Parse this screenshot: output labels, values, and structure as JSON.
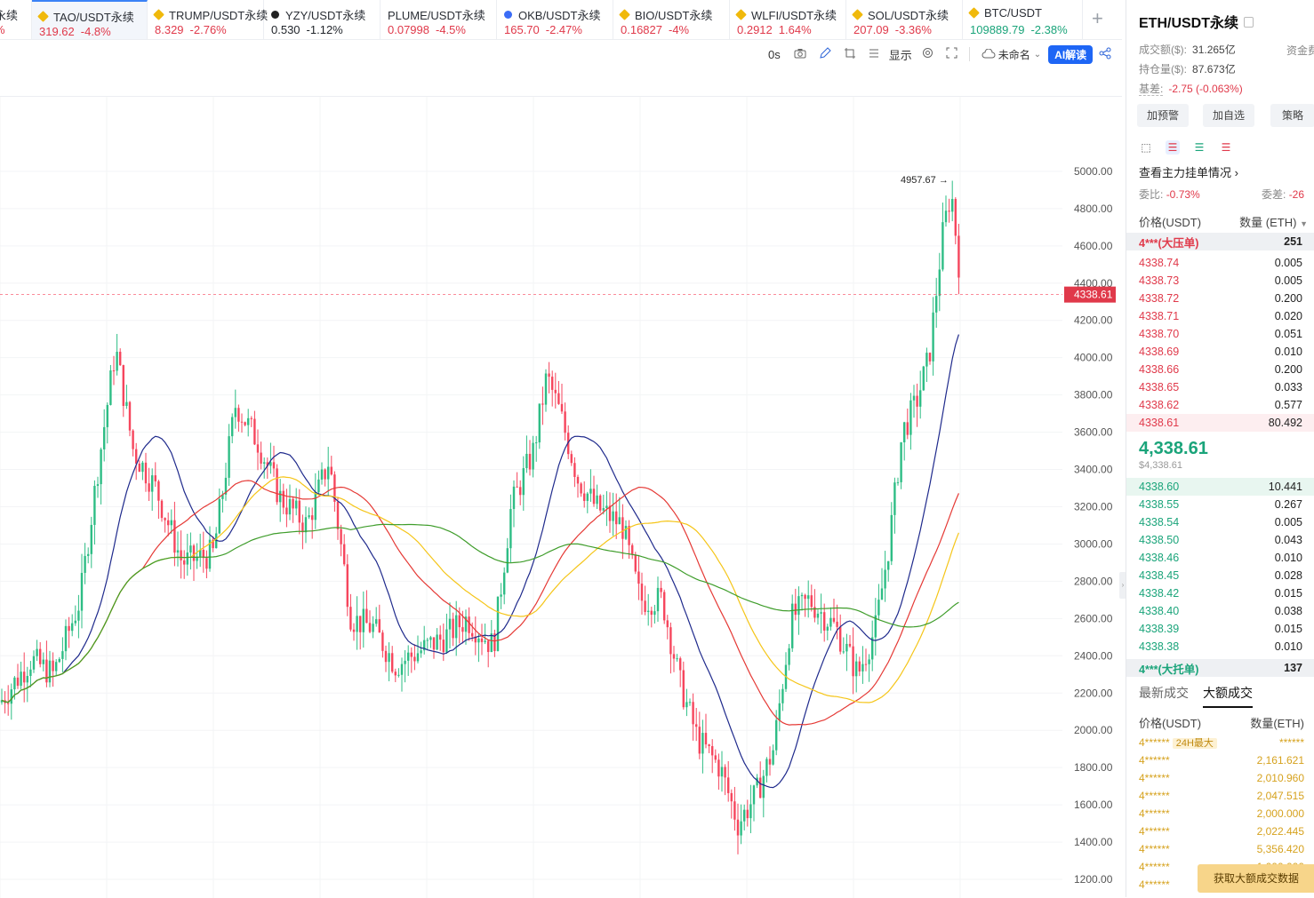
{
  "tabs": [
    {
      "name": "永续",
      "price": "%",
      "change": "",
      "color": "neg",
      "icon": "none",
      "width": 36,
      "active": false
    },
    {
      "name": "TAO/USDT永续",
      "price": "319.62",
      "change": "-4.8%",
      "color": "neg",
      "icon": "coin-icon",
      "width": 130,
      "active": true
    },
    {
      "name": "TRUMP/USDT永续",
      "price": "8.329",
      "change": "-2.76%",
      "color": "neg",
      "icon": "coin-icon",
      "width": 131,
      "active": false
    },
    {
      "name": "YZY/USDT永续",
      "price": "0.530",
      "change": "-1.12%",
      "color": "normal",
      "icon": "coin-dark-icon",
      "width": 131,
      "active": false
    },
    {
      "name": "PLUME/USDT永续",
      "price": "0.07998",
      "change": "-4.5%",
      "color": "neg",
      "icon": "none",
      "width": 131,
      "active": false
    },
    {
      "name": "OKB/USDT永续",
      "price": "165.70",
      "change": "-2.47%",
      "color": "neg",
      "icon": "coin-blue-icon",
      "width": 131,
      "active": false
    },
    {
      "name": "BIO/USDT永续",
      "price": "0.16827",
      "change": "-4%",
      "color": "neg",
      "icon": "coin-icon",
      "width": 131,
      "active": false
    },
    {
      "name": "WLFI/USDT永续",
      "price": "0.2912",
      "change": "1.64%",
      "color": "neg",
      "icon": "coin-icon",
      "width": 131,
      "active": false
    },
    {
      "name": "SOL/USDT永续",
      "price": "207.09",
      "change": "-3.36%",
      "color": "neg",
      "icon": "coin-icon",
      "width": 131,
      "active": false
    },
    {
      "name": "BTC/USDT",
      "price": "109889.79",
      "change": "-2.38%",
      "color": "pos",
      "icon": "coin-icon",
      "width": 135,
      "active": false
    }
  ],
  "add_tab_icon": "+",
  "toolbar": {
    "interval": "0s",
    "display_label": "显示",
    "layout_label": "未命名",
    "ai_label": "AI解读"
  },
  "chart_data": {
    "type": "candlestick",
    "y_ticks": [
      "5000.00",
      "4800.00",
      "4600.00",
      "4400.00",
      "4200.00",
      "4000.00",
      "3800.00",
      "3600.00",
      "3400.00",
      "3200.00",
      "3000.00",
      "2800.00",
      "2600.00",
      "2400.00",
      "2200.00",
      "2000.00",
      "1800.00",
      "1600.00",
      "1400.00",
      "1200.00"
    ],
    "ylim": [
      1100,
      5400
    ],
    "current_price": "4338.61",
    "high_marker": "4957.67",
    "ma_colors": [
      "#1f2a8c",
      "#e53935",
      "#f5c518",
      "#3f9d2b"
    ]
  },
  "panel": {
    "title": "ETH/USDT永续",
    "turnover_label": "成交额($):",
    "turnover_value": "31.265亿",
    "funding_label": "资金费",
    "oi_label": "持仓量($):",
    "oi_value": "87.673亿",
    "basis_label": "基差:",
    "basis_value": "-2.75 (-0.063%)",
    "buttons": [
      "加预警",
      "加自选",
      "策略"
    ],
    "main_orders_label": "查看主力挂单情况",
    "ratio_label": "委比:",
    "ratio_value": "-0.73%",
    "diff_label": "委差:",
    "diff_value": "-26",
    "price_col": "价格(USDT)",
    "qty_col": "数量 (ETH)",
    "ask_big_label": "4***(大压单)",
    "ask_big_qty": "251",
    "asks": [
      {
        "p": "4338.74",
        "q": "0.005"
      },
      {
        "p": "4338.73",
        "q": "0.005"
      },
      {
        "p": "4338.72",
        "q": "0.200"
      },
      {
        "p": "4338.71",
        "q": "0.020"
      },
      {
        "p": "4338.70",
        "q": "0.051"
      },
      {
        "p": "4338.69",
        "q": "0.010"
      },
      {
        "p": "4338.66",
        "q": "0.200"
      },
      {
        "p": "4338.65",
        "q": "0.033"
      },
      {
        "p": "4338.62",
        "q": "0.577"
      },
      {
        "p": "4338.61",
        "q": "80.492"
      }
    ],
    "mid_price": "4,338.61",
    "mid_usd": "$4,338.61",
    "bids": [
      {
        "p": "4338.60",
        "q": "10.441"
      },
      {
        "p": "4338.55",
        "q": "0.267"
      },
      {
        "p": "4338.54",
        "q": "0.005"
      },
      {
        "p": "4338.50",
        "q": "0.043"
      },
      {
        "p": "4338.46",
        "q": "0.010"
      },
      {
        "p": "4338.45",
        "q": "0.028"
      },
      {
        "p": "4338.42",
        "q": "0.015"
      },
      {
        "p": "4338.40",
        "q": "0.038"
      },
      {
        "p": "4338.39",
        "q": "0.015"
      },
      {
        "p": "4338.38",
        "q": "0.010"
      }
    ],
    "bid_big_label": "4***(大托单)",
    "bid_big_qty": "137",
    "trade_tabs": [
      "最新成交",
      "大额成交"
    ],
    "trade_price_col": "价格(USDT)",
    "trade_qty_col": "数量(ETH)",
    "trades": [
      {
        "p": "4******",
        "badge": "24H最大",
        "q": "******"
      },
      {
        "p": "4******",
        "badge": "",
        "q": "2,161.621"
      },
      {
        "p": "4******",
        "badge": "",
        "q": "2,010.960"
      },
      {
        "p": "4******",
        "badge": "",
        "q": "2,047.515"
      },
      {
        "p": "4******",
        "badge": "",
        "q": "2,000.000"
      },
      {
        "p": "4******",
        "badge": "",
        "q": "2,022.445"
      },
      {
        "p": "4******",
        "badge": "",
        "q": "5,356.420"
      },
      {
        "p": "4******",
        "badge": "",
        "q": "1,000,000"
      },
      {
        "p": "4******",
        "badge": "",
        "q": ""
      }
    ],
    "cta_label": "获取大额成交数据"
  }
}
